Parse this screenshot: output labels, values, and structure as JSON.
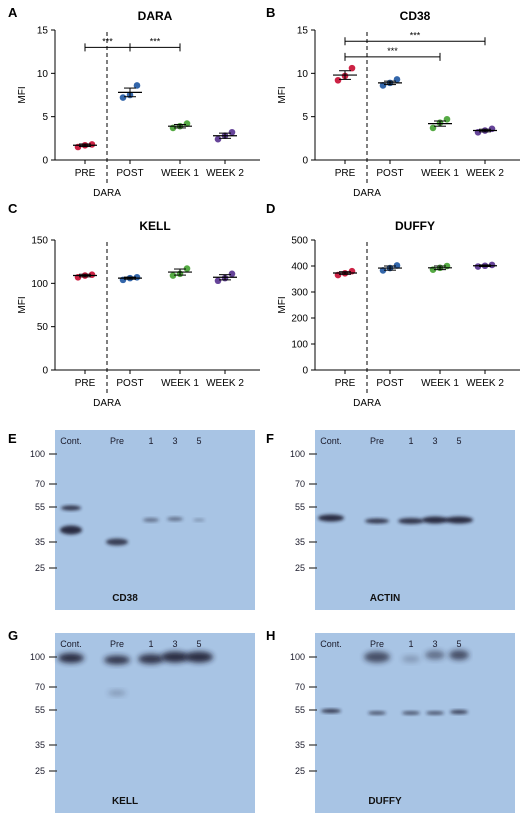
{
  "chart_data": [
    {
      "type": "scatter",
      "panel": "A",
      "title": "DARA",
      "ylabel": "MFI",
      "categories": [
        "PRE",
        "POST",
        "WEEK 1",
        "WEEK 2"
      ],
      "ylim": [
        0,
        15
      ],
      "yticks": [
        "0",
        "5",
        "10",
        "15"
      ],
      "divider_label": "DARA",
      "series": [
        {
          "name": "",
          "color": "#cc2244",
          "category": "PRE",
          "points": [
            1.5,
            1.7,
            1.8
          ],
          "mean": 1.7,
          "sem": 0.15
        },
        {
          "name": "",
          "color": "#3366aa",
          "category": "POST",
          "points": [
            7.2,
            7.5,
            8.6
          ],
          "mean": 7.8,
          "sem": 0.5
        },
        {
          "name": "",
          "color": "#55aa44",
          "category": "WEEK 1",
          "points": [
            3.7,
            3.9,
            4.2
          ],
          "mean": 3.9,
          "sem": 0.2
        },
        {
          "name": "",
          "color": "#664499",
          "category": "WEEK 2",
          "points": [
            2.4,
            2.8,
            3.2
          ],
          "mean": 2.8,
          "sem": 0.3
        }
      ],
      "significance": [
        {
          "from": "PRE",
          "to": "POST",
          "y": 13.0,
          "label": "***"
        },
        {
          "from": "POST",
          "to": "WEEK 1",
          "y": 13.0,
          "label": "***"
        }
      ]
    },
    {
      "type": "scatter",
      "panel": "B",
      "title": "CD38",
      "ylabel": "MFI",
      "categories": [
        "PRE",
        "POST",
        "WEEK 1",
        "WEEK 2"
      ],
      "ylim": [
        0,
        15
      ],
      "yticks": [
        "0",
        "5",
        "10",
        "15"
      ],
      "divider_label": "DARA",
      "series": [
        {
          "name": "",
          "color": "#cc2244",
          "category": "PRE",
          "points": [
            9.2,
            9.7,
            10.6
          ],
          "mean": 9.8,
          "sem": 0.5
        },
        {
          "name": "",
          "color": "#3366aa",
          "category": "POST",
          "points": [
            8.6,
            8.9,
            9.3
          ],
          "mean": 8.9,
          "sem": 0.2
        },
        {
          "name": "",
          "color": "#55aa44",
          "category": "WEEK 1",
          "points": [
            3.7,
            4.3,
            4.7
          ],
          "mean": 4.2,
          "sem": 0.3
        },
        {
          "name": "",
          "color": "#664499",
          "category": "WEEK 2",
          "points": [
            3.2,
            3.4,
            3.6
          ],
          "mean": 3.4,
          "sem": 0.15
        }
      ],
      "significance": [
        {
          "from": "PRE",
          "to": "WEEK 2",
          "y": 13.7,
          "label": "***"
        },
        {
          "from": "PRE",
          "to": "WEEK 1",
          "y": 11.9,
          "label": "***"
        }
      ]
    },
    {
      "type": "scatter",
      "panel": "C",
      "title": "KELL",
      "ylabel": "MFI",
      "categories": [
        "PRE",
        "POST",
        "WEEK 1",
        "WEEK 2"
      ],
      "ylim": [
        0,
        150
      ],
      "yticks": [
        "0",
        "50",
        "100",
        "150"
      ],
      "divider_label": "DARA",
      "series": [
        {
          "name": "",
          "color": "#cc2244",
          "category": "PRE",
          "points": [
            107,
            109,
            110
          ],
          "mean": 109,
          "sem": 1.5
        },
        {
          "name": "",
          "color": "#3366aa",
          "category": "POST",
          "points": [
            104,
            106,
            107
          ],
          "mean": 106,
          "sem": 1.2
        },
        {
          "name": "",
          "color": "#55aa44",
          "category": "WEEK 1",
          "points": [
            109,
            111,
            117
          ],
          "mean": 113,
          "sem": 3.5
        },
        {
          "name": "",
          "color": "#664499",
          "category": "WEEK 2",
          "points": [
            103,
            106,
            111
          ],
          "mean": 107,
          "sem": 3
        }
      ],
      "significance": []
    },
    {
      "type": "scatter",
      "panel": "D",
      "title": "DUFFY",
      "ylabel": "MFI",
      "categories": [
        "PRE",
        "POST",
        "WEEK 1",
        "WEEK 2"
      ],
      "ylim": [
        0,
        500
      ],
      "yticks": [
        "0",
        "100",
        "200",
        "300",
        "400",
        "500"
      ],
      "divider_label": "DARA",
      "series": [
        {
          "name": "",
          "color": "#cc2244",
          "category": "PRE",
          "points": [
            365,
            372,
            380
          ],
          "mean": 373,
          "sem": 5
        },
        {
          "name": "",
          "color": "#3366aa",
          "category": "POST",
          "points": [
            383,
            392,
            402
          ],
          "mean": 392,
          "sem": 8
        },
        {
          "name": "",
          "color": "#55aa44",
          "category": "WEEK 1",
          "points": [
            386,
            393,
            400
          ],
          "mean": 393,
          "sem": 7
        },
        {
          "name": "",
          "color": "#664499",
          "category": "WEEK 2",
          "points": [
            398,
            401,
            404
          ],
          "mean": 401,
          "sem": 3
        }
      ],
      "significance": []
    }
  ],
  "blots": [
    {
      "panel": "E",
      "name": "CD38",
      "lanes": [
        "Cont.",
        "Pre",
        "1",
        "3",
        "5"
      ],
      "markers": [
        "100",
        "70",
        "55",
        "35",
        "25"
      ]
    },
    {
      "panel": "F",
      "name": "ACTIN",
      "lanes": [
        "Cont.",
        "Pre",
        "1",
        "3",
        "5"
      ],
      "markers": [
        "100",
        "70",
        "55",
        "35",
        "25"
      ]
    },
    {
      "panel": "G",
      "name": "KELL",
      "lanes": [
        "Cont.",
        "Pre",
        "1",
        "3",
        "5"
      ],
      "markers": [
        "100",
        "70",
        "55",
        "35",
        "25"
      ]
    },
    {
      "panel": "H",
      "name": "DUFFY",
      "lanes": [
        "Cont.",
        "Pre",
        "1",
        "3",
        "5"
      ],
      "markers": [
        "100",
        "70",
        "55",
        "35",
        "25"
      ]
    }
  ],
  "colors": {
    "blot_bg": "#a8c4e4",
    "band": "#1e1e30"
  }
}
